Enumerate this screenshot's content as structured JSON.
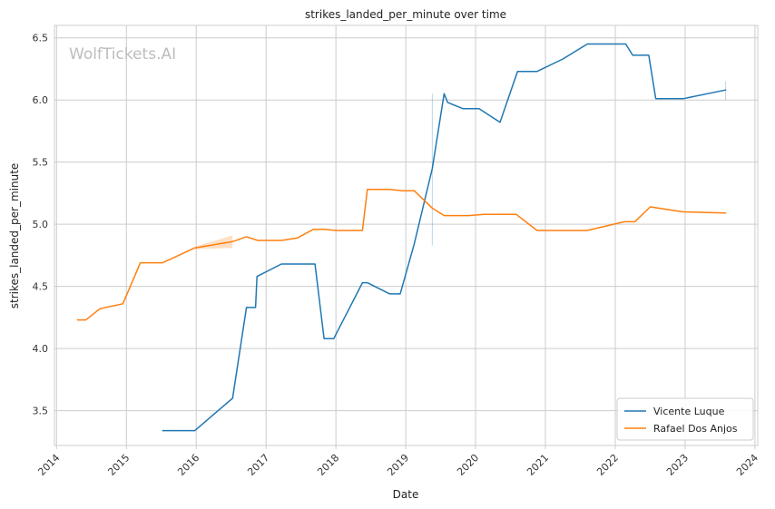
{
  "chart_data": {
    "type": "line",
    "title": "strikes_landed_per_minute over time",
    "xlabel": "Date",
    "ylabel": "strikes_landed_per_minute",
    "watermark": "WolfTickets.AI",
    "xlim": [
      2013.97,
      2024.04
    ],
    "ylim": [
      3.22,
      6.6
    ],
    "x_ticks": [
      2014,
      2015,
      2016,
      2017,
      2018,
      2019,
      2020,
      2021,
      2022,
      2023,
      2024
    ],
    "x_tick_labels": [
      "2014",
      "2015",
      "2016",
      "2017",
      "2018",
      "2019",
      "2020",
      "2021",
      "2022",
      "2023",
      "2024"
    ],
    "y_ticks": [
      3.5,
      4.0,
      4.5,
      5.0,
      5.5,
      6.0,
      6.5
    ],
    "y_tick_labels": [
      "3.5",
      "4.0",
      "4.5",
      "5.0",
      "5.5",
      "6.0",
      "6.5"
    ],
    "grid": true,
    "legend_position": "bottom-right",
    "series": [
      {
        "name": "Vicente Luque",
        "color": "#1f77b4",
        "points": [
          [
            2015.52,
            3.34
          ],
          [
            2015.98,
            3.34
          ],
          [
            2016.52,
            3.6
          ],
          [
            2016.72,
            4.33
          ],
          [
            2016.85,
            4.33
          ],
          [
            2016.87,
            4.58
          ],
          [
            2017.22,
            4.68
          ],
          [
            2017.7,
            4.68
          ],
          [
            2017.83,
            4.08
          ],
          [
            2017.97,
            4.08
          ],
          [
            2018.38,
            4.53
          ],
          [
            2018.45,
            4.53
          ],
          [
            2018.77,
            4.44
          ],
          [
            2018.92,
            4.44
          ],
          [
            2019.12,
            4.84
          ],
          [
            2019.38,
            5.45
          ],
          [
            2019.55,
            6.05
          ],
          [
            2019.6,
            5.98
          ],
          [
            2019.82,
            5.93
          ],
          [
            2020.05,
            5.93
          ],
          [
            2020.35,
            5.82
          ],
          [
            2020.6,
            6.23
          ],
          [
            2020.88,
            6.23
          ],
          [
            2021.25,
            6.33
          ],
          [
            2021.6,
            6.45
          ],
          [
            2022.15,
            6.45
          ],
          [
            2022.25,
            6.36
          ],
          [
            2022.48,
            6.36
          ],
          [
            2022.58,
            6.01
          ],
          [
            2022.97,
            6.01
          ],
          [
            2023.58,
            6.08
          ]
        ],
        "bands": [
          {
            "x": 2019.38,
            "lower": 4.83,
            "upper": 6.05
          },
          {
            "x": 2023.58,
            "lower": 6.0,
            "upper": 6.15
          }
        ]
      },
      {
        "name": "Rafael Dos Anjos",
        "color": "#ff7f0e",
        "points": [
          [
            2014.3,
            4.23
          ],
          [
            2014.42,
            4.23
          ],
          [
            2014.62,
            4.32
          ],
          [
            2014.95,
            4.36
          ],
          [
            2015.2,
            4.69
          ],
          [
            2015.52,
            4.69
          ],
          [
            2015.98,
            4.81
          ],
          [
            2016.52,
            4.86
          ],
          [
            2016.72,
            4.9
          ],
          [
            2016.88,
            4.87
          ],
          [
            2017.22,
            4.87
          ],
          [
            2017.45,
            4.89
          ],
          [
            2017.68,
            4.96
          ],
          [
            2017.83,
            4.96
          ],
          [
            2018.0,
            4.95
          ],
          [
            2018.38,
            4.95
          ],
          [
            2018.45,
            5.28
          ],
          [
            2018.77,
            5.28
          ],
          [
            2018.95,
            5.27
          ],
          [
            2019.12,
            5.27
          ],
          [
            2019.38,
            5.13
          ],
          [
            2019.55,
            5.07
          ],
          [
            2019.9,
            5.07
          ],
          [
            2020.12,
            5.08
          ],
          [
            2020.58,
            5.08
          ],
          [
            2020.88,
            4.95
          ],
          [
            2021.6,
            4.95
          ],
          [
            2022.13,
            5.02
          ],
          [
            2022.28,
            5.02
          ],
          [
            2022.5,
            5.14
          ],
          [
            2022.97,
            5.1
          ],
          [
            2023.58,
            5.09
          ]
        ],
        "bands": [
          {
            "x": 2015.98,
            "lower": 4.8,
            "upper": 4.82
          },
          {
            "x": 2016.52,
            "lower": 4.81,
            "upper": 4.91
          }
        ]
      }
    ]
  }
}
